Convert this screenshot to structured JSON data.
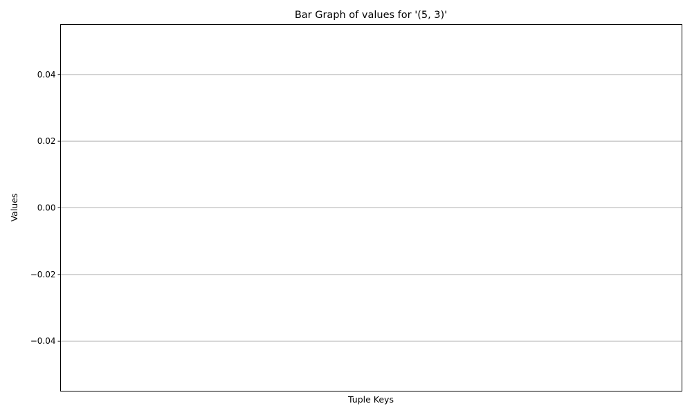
{
  "chart_data": {
    "type": "bar",
    "title": "Bar Graph of values for '(5, 3)'",
    "xlabel": "Tuple Keys",
    "ylabel": "Values",
    "categories": [],
    "values": [],
    "ylim": [
      -0.055,
      0.055
    ],
    "yticks": [
      {
        "value": -0.04,
        "label": "−0.04"
      },
      {
        "value": -0.02,
        "label": "−0.02"
      },
      {
        "value": 0.0,
        "label": "0.00"
      },
      {
        "value": 0.02,
        "label": "0.02"
      },
      {
        "value": 0.04,
        "label": "0.04"
      }
    ],
    "grid": "y",
    "legend": "none"
  }
}
